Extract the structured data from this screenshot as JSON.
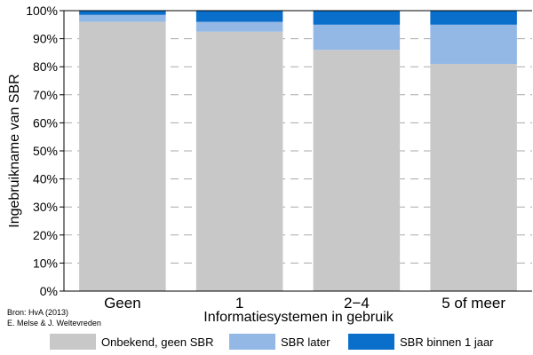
{
  "chart_data": {
    "type": "bar",
    "stacked": true,
    "categories": [
      "Geen",
      "1",
      "2−4",
      "5 of meer"
    ],
    "series": [
      {
        "name": "Onbekend, geen SBR",
        "values": [
          96,
          92.5,
          86,
          81
        ],
        "color": "#c8c8c8"
      },
      {
        "name": "SBR later",
        "values": [
          2.5,
          3.5,
          9,
          14
        ],
        "color": "#93b8e6"
      },
      {
        "name": "SBR binnen 1 jaar",
        "values": [
          1.5,
          4,
          5,
          5
        ],
        "color": "#0a6ecb"
      }
    ],
    "xlabel": "Informatiesystemen in gebruik",
    "ylabel": "Ingebruikname van SBR",
    "ylim": [
      0,
      100
    ],
    "y_ticks": [
      "0%",
      "10%",
      "20%",
      "30%",
      "40%",
      "50%",
      "60%",
      "70%",
      "80%",
      "90%",
      "100%"
    ],
    "grid": "horizontal-dashed",
    "legend_position": "bottom"
  },
  "source": {
    "line1": "Bron: HvA (2013)",
    "line2": "E. Melse & J. Weltevreden"
  }
}
